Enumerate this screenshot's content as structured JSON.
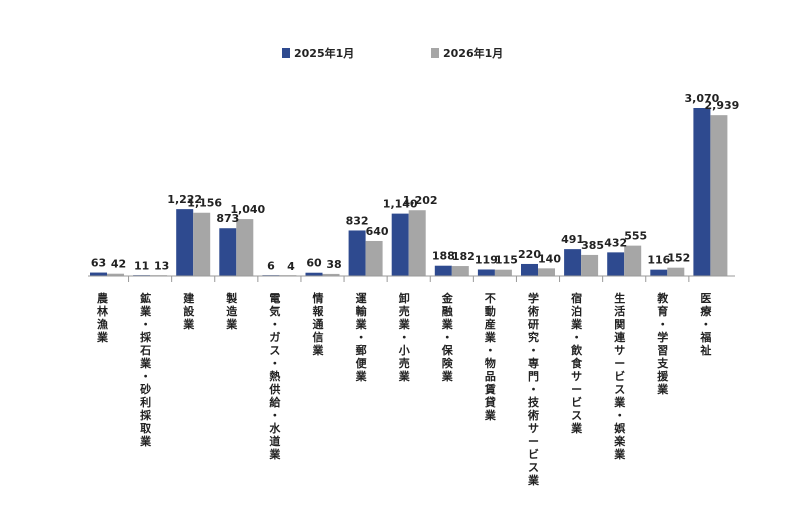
{
  "chart_data": {
    "type": "bar",
    "title": "",
    "xlabel": "",
    "ylabel": "",
    "ylim": [
      0,
      3300
    ],
    "grid": false,
    "legend_position": "top-center",
    "categories": [
      "農林漁業",
      "鉱業・採石業・砂利採取業",
      "建設業",
      "製造業",
      "電気・ガス・熱供給・水道業",
      "情報通信業",
      "運輸業・郵便業",
      "卸売業・小売業",
      "金融業・保険業",
      "不動産業・物品賃貸業",
      "学術研究・専門・技術サービス業",
      "宿泊業・飲食サービス業",
      "生活関連サービス業・娯楽業",
      "教育・学習支援業",
      "医療・福祉"
    ],
    "series": [
      {
        "name": "2025年1月",
        "color": "#2e4a8f",
        "values": [
          63,
          11,
          1222,
          873,
          6,
          60,
          832,
          1140,
          188,
          119,
          220,
          491,
          432,
          116,
          3070
        ],
        "labels": [
          "63",
          "11",
          "1,222",
          "873",
          "6",
          "60",
          "832",
          "1,140",
          "188",
          "119",
          "220",
          "491",
          "432",
          "116",
          "3,070"
        ]
      },
      {
        "name": "2026年1月",
        "color": "#a6a6a6",
        "values": [
          42,
          13,
          1156,
          1040,
          4,
          38,
          640,
          1202,
          182,
          115,
          140,
          385,
          555,
          152,
          2939
        ],
        "labels": [
          "42",
          "13",
          "1,156",
          "1,040",
          "4",
          "38",
          "640",
          "1,202",
          "182",
          "115",
          "140",
          "385",
          "555",
          "152",
          "2,939"
        ]
      }
    ]
  }
}
